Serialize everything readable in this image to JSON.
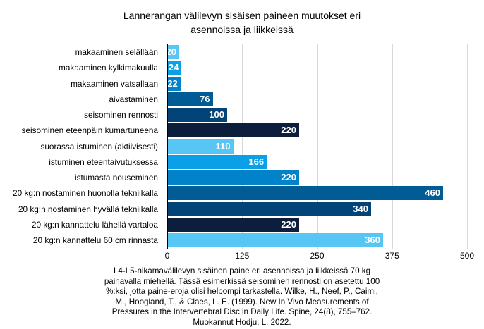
{
  "chart": {
    "title_lines": [
      "Lannerangan välilevyn sisäisen paineen muutokset eri",
      "asennoissa ja liikkeissä"
    ],
    "caption_lines": [
      "L4-L5-nikamavälilevyn sisäinen paine eri asennoissa ja liikkeissä 70 kg",
      "painavalla miehellä. Tässä esimerkissä seisominen rennosti on asetettu 100",
      "%:ksi, jotta paine-eroja olisi helpompi tarkastella. Wilke, H., Neef, P., Caimi,",
      "M., Hoogland, T., & Claes, L. E. (1999). New In Vivo Measurements of",
      "Pressures in the Intervertebral Disc in Daily Life. Spine, 24(8), 755–762.",
      "Muokannut Hodju, L. 2022."
    ]
  },
  "chart_data": {
    "type": "bar",
    "orientation": "horizontal",
    "title": "Lannerangan välilevyn sisäisen paineen muutokset eri asennoissa ja liikkeissä",
    "categories": [
      "makaaminen selällään",
      "makaaminen kylkimakuulla",
      "makaaminen vatsallaan",
      "aivastaminen",
      "seisominen rennosti",
      "seisominen eteenpäin kumartuneena",
      "suorassa istuminen (aktiivisesti)",
      "istuminen eteentaivutuksessa",
      "istumasta nouseminen",
      "20 kg:n nostaminen huonolla tekniikalla",
      "20 kg:n nostaminen hyvällä tekniikalla",
      "20 kg:n kannattelu lähellä vartaloa",
      "20 kg:n kannattelu 60 cm rinnasta"
    ],
    "values": [
      20,
      24,
      22,
      76,
      100,
      220,
      110,
      166,
      220,
      460,
      340,
      220,
      360
    ],
    "bar_colors": [
      "#58C6F5",
      "#0AA0E8",
      "#0283C9",
      "#015C96",
      "#024478",
      "#0D1E3C",
      "#58C6F5",
      "#0AA0E8",
      "#0283C9",
      "#015C96",
      "#024478",
      "#0D1E3C",
      "#58C6F5"
    ],
    "value_label_color": "#ffffff",
    "xlim": [
      0,
      500
    ],
    "x_tick_values": [
      0,
      125,
      250,
      375,
      500
    ],
    "x_tick_labels": [
      "0",
      "125",
      "250",
      "375",
      "500"
    ],
    "grid": true,
    "gridline_color": "#d9d9d9",
    "axis_line_color": "#000000",
    "legend": "none"
  }
}
